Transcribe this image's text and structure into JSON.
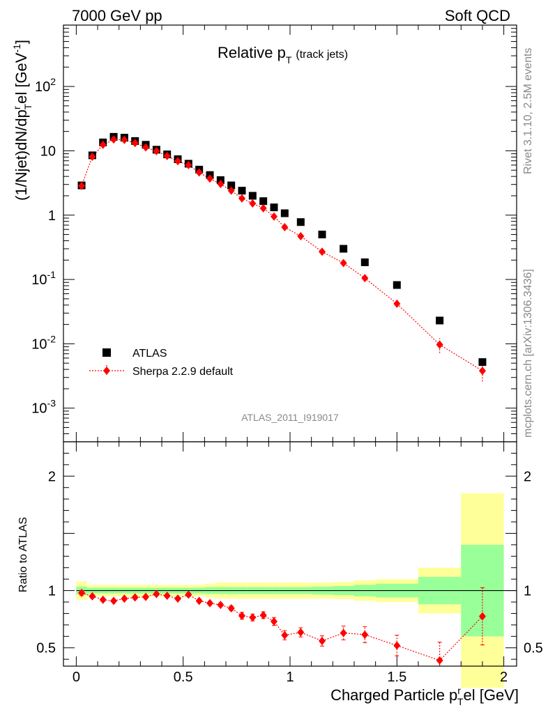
{
  "header": {
    "left_label": "7000 GeV pp",
    "right_label": "Soft QCD"
  },
  "side_labels": {
    "rivet": "Rivet 3.1.10,  2.5M events",
    "mcplots": "mcplots.cern.ch [arXiv:1306.3436]"
  },
  "analysis_id": "ATLAS_2011_I919017",
  "colors": {
    "data": "#000000",
    "mc": "#ff0000",
    "band_inner": "#99ff99",
    "band_outer": "#ffff99",
    "watermark": "#888888"
  },
  "chart_data": [
    {
      "type": "scatter",
      "title_main": "Relative p",
      "title_sub": "T",
      "title_note": "(track jets)",
      "xlabel_main": "Charged Particle p",
      "xlabel_sub": "T",
      "xlabel_sup": "r",
      "xlabel_rest": "el [GeV]",
      "ylabel_main": "(1/Njet)dN/dp",
      "ylabel_sup": "r",
      "ylabel_sub": "T",
      "ylabel_rest": "el [GeV",
      "ylabel_unit_sup": "-1",
      "ylabel_end": "]",
      "yscale": "log",
      "xlim": [
        -0.06,
        2.06
      ],
      "ylim": [
        0.0003,
        900
      ],
      "yticks": [
        {
          "value": 0.001,
          "mant": "10",
          "exp": "-3"
        },
        {
          "value": 0.01,
          "mant": "10",
          "exp": "-2"
        },
        {
          "value": 0.1,
          "mant": "10",
          "exp": "-1"
        },
        {
          "value": 1,
          "mant": "1",
          "exp": ""
        },
        {
          "value": 10,
          "mant": "10",
          "exp": ""
        },
        {
          "value": 100,
          "mant": "10",
          "exp": "2"
        }
      ],
      "legend_position": "lower-left",
      "series": [
        {
          "name": "ATLAS",
          "x": [
            0.025,
            0.075,
            0.125,
            0.175,
            0.225,
            0.275,
            0.325,
            0.375,
            0.425,
            0.475,
            0.525,
            0.575,
            0.625,
            0.675,
            0.725,
            0.775,
            0.825,
            0.875,
            0.925,
            0.975,
            1.05,
            1.15,
            1.25,
            1.35,
            1.5,
            1.7,
            1.9
          ],
          "y": [
            2.9,
            8.5,
            13.5,
            16.5,
            16.0,
            14.2,
            12.4,
            10.4,
            8.8,
            7.4,
            6.3,
            5.1,
            4.2,
            3.5,
            2.9,
            2.4,
            2.0,
            1.65,
            1.32,
            1.07,
            0.78,
            0.5,
            0.3,
            0.185,
            0.082,
            0.023,
            0.0052
          ]
        },
        {
          "name": "Sherpa 2.2.9 default",
          "x": [
            0.025,
            0.075,
            0.125,
            0.175,
            0.225,
            0.275,
            0.325,
            0.375,
            0.425,
            0.475,
            0.525,
            0.575,
            0.625,
            0.675,
            0.725,
            0.775,
            0.825,
            0.875,
            0.925,
            0.975,
            1.05,
            1.15,
            1.25,
            1.35,
            1.5,
            1.7,
            1.9
          ],
          "y": [
            2.85,
            8.1,
            12.4,
            15.0,
            14.8,
            13.2,
            11.3,
            9.9,
            8.3,
            6.9,
            6.0,
            4.6,
            3.7,
            3.05,
            2.4,
            1.82,
            1.52,
            1.28,
            0.95,
            0.65,
            0.47,
            0.27,
            0.18,
            0.105,
            0.042,
            0.0097,
            0.0038
          ],
          "yerr": [
            0.05,
            0.1,
            0.15,
            0.2,
            0.2,
            0.18,
            0.15,
            0.13,
            0.11,
            0.09,
            0.08,
            0.07,
            0.06,
            0.05,
            0.04,
            0.03,
            0.03,
            0.03,
            0.025,
            0.02,
            0.015,
            0.01,
            0.008,
            0.006,
            0.004,
            0.0025,
            0.0012
          ]
        }
      ]
    },
    {
      "type": "scatter",
      "ylabel": "Ratio to ATLAS",
      "xlim": [
        -0.06,
        2.06
      ],
      "ylim": [
        0.34,
        2.3
      ],
      "xticks": [
        {
          "value": 0,
          "label": "0"
        },
        {
          "value": 0.5,
          "label": "0.5"
        },
        {
          "value": 1,
          "label": "1"
        },
        {
          "value": 1.5,
          "label": "1.5"
        },
        {
          "value": 2,
          "label": "2"
        }
      ],
      "yticks": [
        {
          "value": 0.5,
          "label": "0.5"
        },
        {
          "value": 1,
          "label": "1"
        },
        {
          "value": 2,
          "label": "2"
        }
      ],
      "reference_line": 1,
      "bands": {
        "edges": [
          0,
          0.05,
          0.1,
          0.15,
          0.2,
          0.25,
          0.3,
          0.35,
          0.4,
          0.45,
          0.5,
          0.55,
          0.6,
          0.65,
          0.7,
          0.75,
          0.8,
          0.85,
          0.9,
          0.95,
          1.0,
          1.1,
          1.2,
          1.3,
          1.4,
          1.6,
          1.8,
          2.0
        ],
        "inner": [
          0.035,
          0.025,
          0.025,
          0.025,
          0.025,
          0.025,
          0.025,
          0.025,
          0.025,
          0.025,
          0.025,
          0.025,
          0.03,
          0.03,
          0.03,
          0.03,
          0.03,
          0.03,
          0.03,
          0.03,
          0.03,
          0.035,
          0.04,
          0.05,
          0.06,
          0.12,
          0.4
        ],
        "outer": [
          0.08,
          0.05,
          0.05,
          0.05,
          0.05,
          0.05,
          0.05,
          0.05,
          0.05,
          0.05,
          0.05,
          0.05,
          0.06,
          0.07,
          0.07,
          0.07,
          0.07,
          0.07,
          0.07,
          0.07,
          0.07,
          0.07,
          0.075,
          0.09,
          0.1,
          0.2,
          0.85
        ]
      },
      "series": [
        {
          "name": "Sherpa 2.2.9 default",
          "x": [
            0.025,
            0.075,
            0.125,
            0.175,
            0.225,
            0.275,
            0.325,
            0.375,
            0.425,
            0.475,
            0.525,
            0.575,
            0.625,
            0.675,
            0.725,
            0.775,
            0.825,
            0.875,
            0.925,
            0.975,
            1.05,
            1.15,
            1.25,
            1.35,
            1.5,
            1.7,
            1.9
          ],
          "y": [
            0.98,
            0.95,
            0.92,
            0.91,
            0.93,
            0.94,
            0.945,
            0.97,
            0.955,
            0.93,
            0.965,
            0.91,
            0.89,
            0.875,
            0.845,
            0.78,
            0.765,
            0.785,
            0.73,
            0.61,
            0.635,
            0.56,
            0.63,
            0.615,
            0.52,
            0.39,
            0.775
          ],
          "yerr": [
            0.02,
            0.015,
            0.015,
            0.015,
            0.015,
            0.015,
            0.015,
            0.015,
            0.015,
            0.015,
            0.015,
            0.015,
            0.015,
            0.015,
            0.02,
            0.03,
            0.03,
            0.03,
            0.035,
            0.04,
            0.04,
            0.045,
            0.06,
            0.07,
            0.09,
            0.16,
            0.25
          ]
        }
      ]
    }
  ],
  "legend": {
    "data_label": "ATLAS",
    "mc_label": "Sherpa 2.2.9 default"
  }
}
